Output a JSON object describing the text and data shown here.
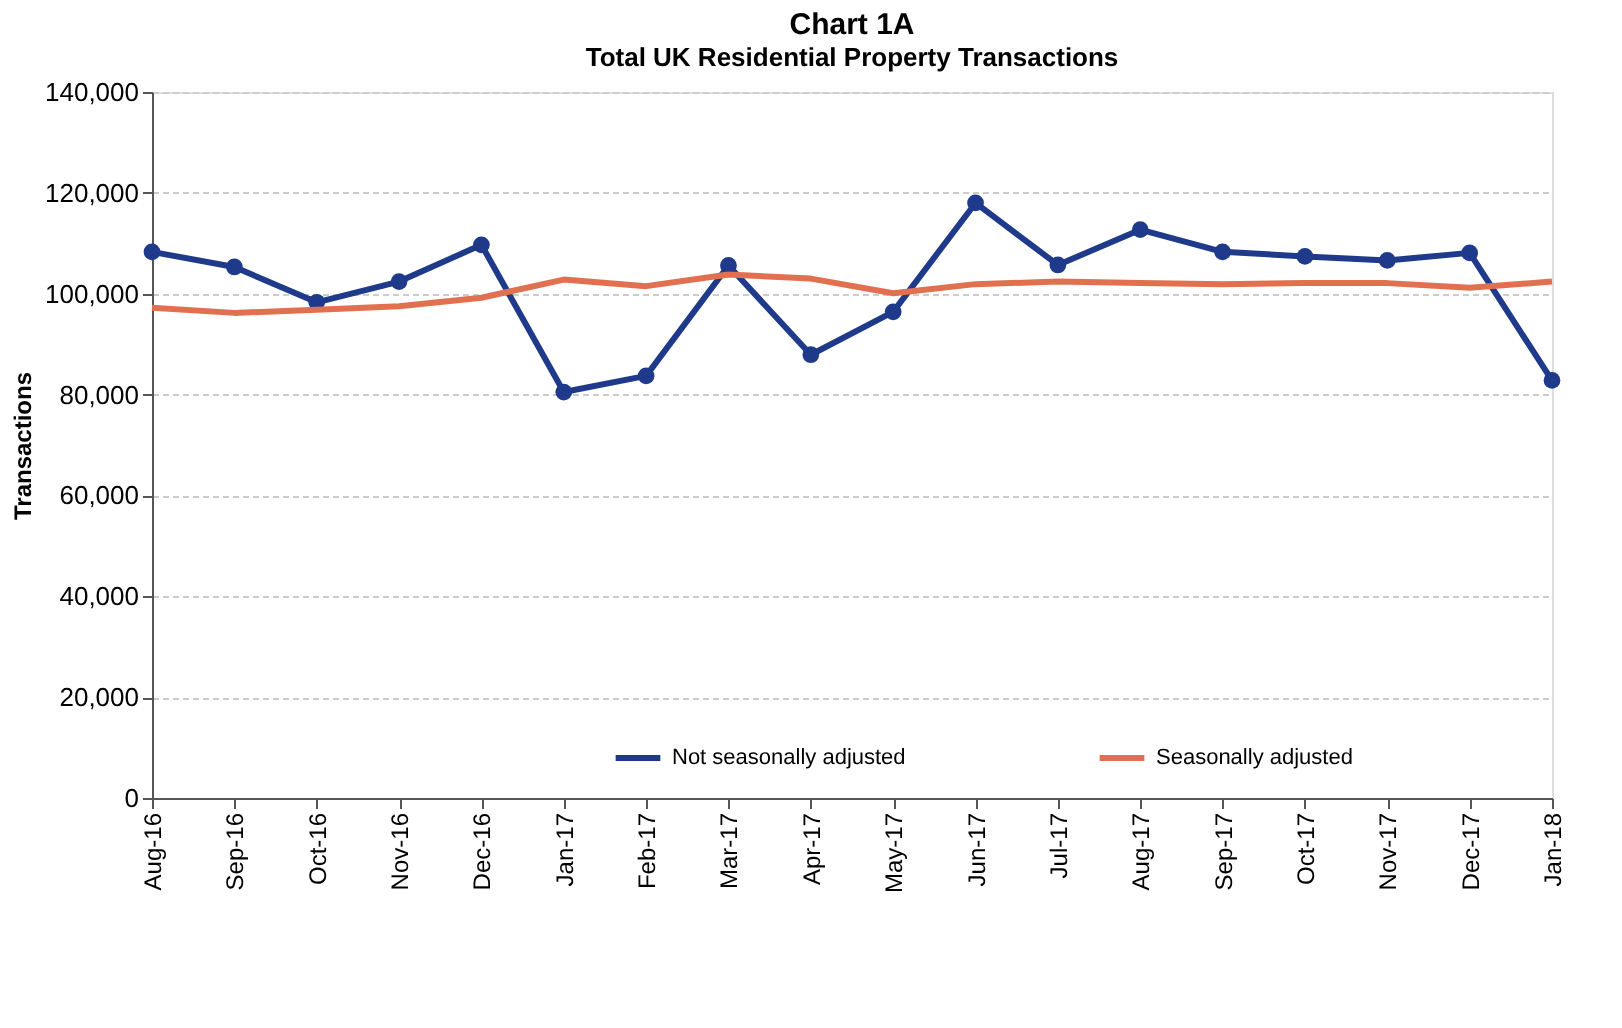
{
  "chart_data": {
    "type": "line",
    "title": "Chart 1A",
    "subtitle": "Total UK Residential Property Transactions",
    "ylabel": "Transactions",
    "categories": [
      "Aug-16",
      "Sep-16",
      "Oct-16",
      "Nov-16",
      "Dec-16",
      "Jan-17",
      "Feb-17",
      "Mar-17",
      "Apr-17",
      "May-17",
      "Jun-17",
      "Jul-17",
      "Aug-17",
      "Sep-17",
      "Oct-17",
      "Nov-17",
      "Dec-17",
      "Jan-18"
    ],
    "series": [
      {
        "name": "Not seasonally adjusted",
        "color": "#1f3a8a",
        "marker": "circle",
        "values": [
          108300,
          105300,
          98300,
          102400,
          109700,
          80500,
          83700,
          105600,
          87900,
          96400,
          118000,
          105700,
          112700,
          108300,
          107400,
          106600,
          108100,
          82800
        ]
      },
      {
        "name": "Seasonally adjusted",
        "color": "#e07050",
        "marker": "none",
        "values": [
          97200,
          96200,
          96800,
          97500,
          99200,
          102800,
          101500,
          103800,
          103000,
          100100,
          101900,
          102400,
          102100,
          101900,
          102100,
          102100,
          101200,
          102400
        ]
      }
    ],
    "ylim": [
      0,
      140000
    ],
    "yticks": [
      0,
      {
        "value": 20000,
        "label": "20,000"
      },
      {
        "value": 40000,
        "label": "40,000"
      },
      {
        "value": 60000,
        "label": "60,000"
      },
      {
        "value": 80000,
        "label": "80,000"
      },
      {
        "value": 100000,
        "label": "100,000"
      },
      {
        "value": 120000,
        "label": "120,000"
      },
      {
        "value": 140000,
        "label": "140,000"
      }
    ],
    "grid": "y",
    "legend": "bottom"
  }
}
